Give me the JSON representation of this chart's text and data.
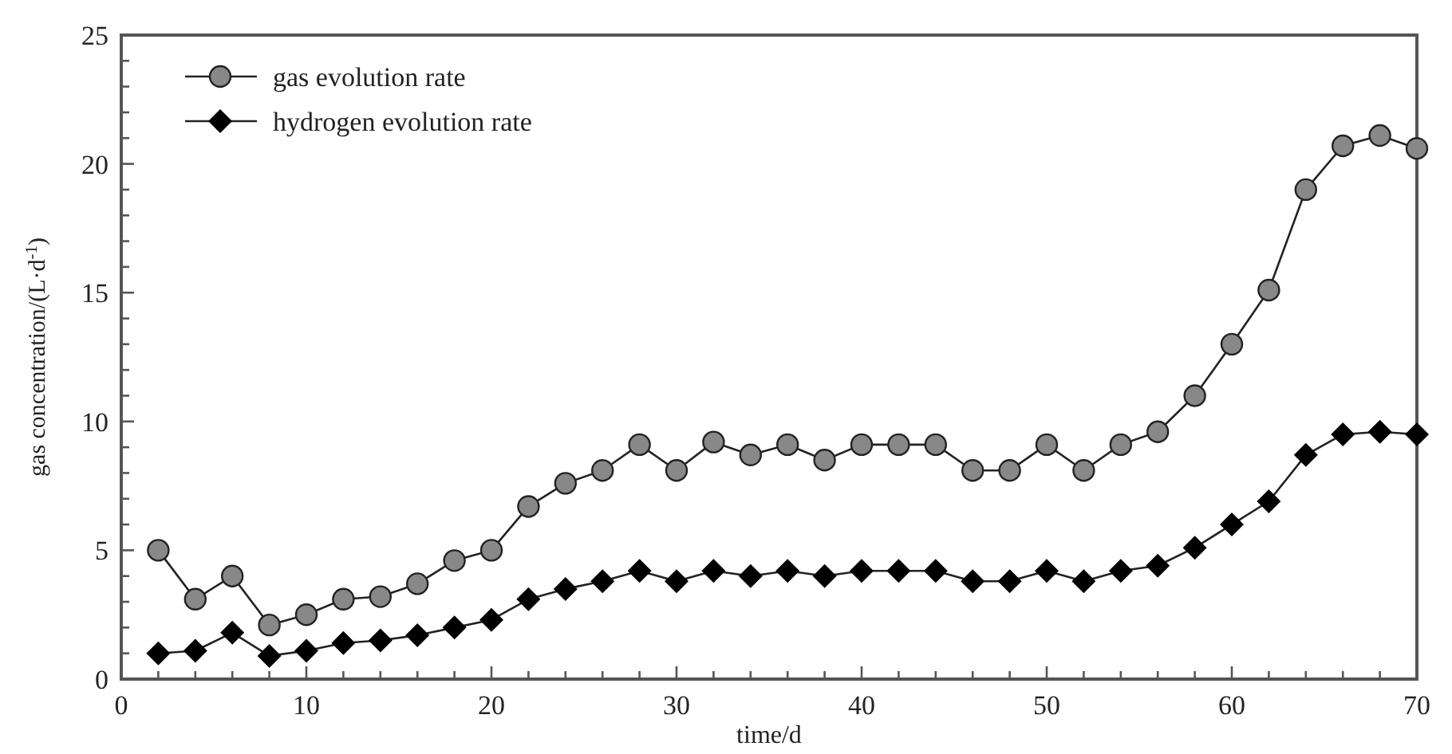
{
  "chart_data": {
    "type": "line",
    "xlabel": "time/d",
    "ylabel": "gas concentration/(L·d$^{-1}$)",
    "x": [
      2,
      4,
      6,
      8,
      10,
      12,
      14,
      16,
      18,
      20,
      22,
      24,
      26,
      28,
      30,
      32,
      34,
      36,
      38,
      40,
      42,
      44,
      46,
      48,
      50,
      52,
      54,
      56,
      58,
      60,
      62,
      64,
      66,
      68,
      70
    ],
    "series": [
      {
        "name": "gas evolution rate",
        "color": "#888888",
        "marker": "circle",
        "values": [
          5.0,
          3.1,
          4.0,
          2.1,
          2.5,
          3.1,
          3.2,
          3.7,
          4.6,
          5.0,
          6.7,
          7.6,
          8.1,
          9.1,
          8.1,
          9.2,
          8.7,
          9.1,
          8.5,
          9.1,
          9.1,
          9.1,
          8.1,
          8.1,
          9.1,
          8.1,
          9.1,
          9.6,
          11.0,
          13.0,
          15.1,
          19.0,
          20.7,
          21.1,
          20.6
        ]
      },
      {
        "name": "hydrogen evolution rate",
        "color": "#000000",
        "marker": "diamond",
        "values": [
          1.0,
          1.1,
          1.8,
          0.9,
          1.1,
          1.4,
          1.5,
          1.7,
          2.0,
          2.3,
          3.1,
          3.5,
          3.8,
          4.2,
          3.8,
          4.2,
          4.0,
          4.2,
          4.0,
          4.2,
          4.2,
          4.2,
          3.8,
          3.8,
          4.2,
          3.8,
          4.2,
          4.4,
          5.1,
          6.0,
          6.9,
          8.7,
          9.5,
          9.6,
          9.5
        ]
      }
    ],
    "xlim": [
      0,
      70
    ],
    "xticks": [
      0,
      {
        "value": 2,
        "label": null
      },
      {
        "value": 4,
        "label": null
      },
      {
        "value": 6,
        "label": null
      },
      {
        "value": 8,
        "label": null
      },
      10,
      {
        "value": 12,
        "label": null
      },
      {
        "value": 14,
        "label": null
      },
      {
        "value": 16,
        "label": null
      },
      {
        "value": 18,
        "label": null
      },
      20,
      {
        "value": 22,
        "label": null
      },
      {
        "value": 24,
        "label": null
      },
      {
        "value": 26,
        "label": null
      },
      {
        "value": 28,
        "label": null
      },
      30,
      {
        "value": 32,
        "label": null
      },
      {
        "value": 34,
        "label": null
      },
      {
        "value": 36,
        "label": null
      },
      {
        "value": 38,
        "label": null
      },
      40,
      {
        "value": 42,
        "label": null
      },
      {
        "value": 44,
        "label": null
      },
      {
        "value": 46,
        "label": null
      },
      {
        "value": 48,
        "label": null
      },
      50,
      {
        "value": 52,
        "label": null
      },
      {
        "value": 54,
        "label": null
      },
      {
        "value": 56,
        "label": null
      },
      {
        "value": 58,
        "label": null
      },
      60,
      {
        "value": 62,
        "label": null
      },
      {
        "value": 64,
        "label": null
      },
      {
        "value": 66,
        "label": null
      },
      {
        "value": 68,
        "label": null
      },
      70
    ],
    "ylim": [
      0,
      25
    ],
    "yticks": [
      0,
      {
        "value": 1,
        "label": null
      },
      {
        "value": 2,
        "label": null
      },
      {
        "value": 3,
        "label": null
      },
      {
        "value": 4,
        "label": null
      },
      5,
      {
        "value": 6,
        "label": null
      },
      {
        "value": 7,
        "label": null
      },
      {
        "value": 8,
        "label": null
      },
      {
        "value": 9,
        "label": null
      },
      10,
      {
        "value": 11,
        "label": null
      },
      {
        "value": 12,
        "label": null
      },
      {
        "value": 13,
        "label": null
      },
      {
        "value": 14,
        "label": null
      },
      15,
      {
        "value": 16,
        "label": null
      },
      {
        "value": 17,
        "label": null
      },
      {
        "value": 18,
        "label": null
      },
      {
        "value": 19,
        "label": null
      },
      20,
      {
        "value": 21,
        "label": null
      },
      {
        "value": 22,
        "label": null
      },
      {
        "value": 23,
        "label": null
      },
      {
        "value": 24,
        "label": null
      },
      25
    ],
    "grid": false,
    "legend": "top left",
    "line_style": "solid"
  }
}
